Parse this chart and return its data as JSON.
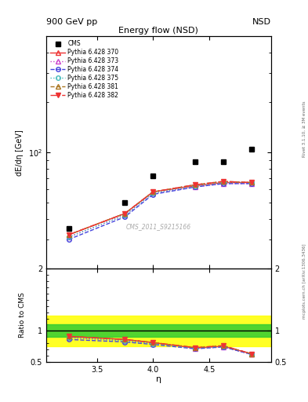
{
  "title_main": "Energy flow (NSD)",
  "header_left": "900 GeV pp",
  "header_right": "NSD",
  "right_label_top": "Rivet 3.1.10, ≥ 3M events",
  "right_label_bot": "mcplots.cern.ch [arXiv:1306.3436]",
  "watermark": "CMS_2011_S9215166",
  "xlabel": "η",
  "ylabel_main": "dE/dη [GeV]",
  "ylabel_ratio": "Ratio to CMS",
  "eta_points": [
    3.25,
    3.75,
    4.0,
    4.375,
    4.625,
    4.875
  ],
  "cms_data": [
    35.0,
    50.0,
    72.0,
    88.0,
    88.0,
    105.0
  ],
  "series": [
    {
      "label": "Pythia 6.428 370",
      "color": "#ee3333",
      "linestyle": "-",
      "marker": "^",
      "markerfacecolor": "none",
      "values": [
        32.0,
        43.0,
        58.0,
        63.0,
        66.0,
        66.0
      ],
      "ratio": [
        0.91,
        0.86,
        0.81,
        0.72,
        0.75,
        0.63
      ]
    },
    {
      "label": "Pythia 6.428 373",
      "color": "#cc44cc",
      "linestyle": ":",
      "marker": "^",
      "markerfacecolor": "none",
      "values": [
        31.0,
        42.0,
        57.0,
        62.0,
        65.0,
        65.0
      ],
      "ratio": [
        0.89,
        0.84,
        0.79,
        0.71,
        0.74,
        0.62
      ]
    },
    {
      "label": "Pythia 6.428 374",
      "color": "#4444dd",
      "linestyle": "--",
      "marker": "o",
      "markerfacecolor": "none",
      "values": [
        30.0,
        41.0,
        56.0,
        62.0,
        65.0,
        65.0
      ],
      "ratio": [
        0.86,
        0.82,
        0.78,
        0.71,
        0.74,
        0.62
      ]
    },
    {
      "label": "Pythia 6.428 375",
      "color": "#44bbbb",
      "linestyle": ":",
      "marker": "o",
      "markerfacecolor": "none",
      "values": [
        31.0,
        42.0,
        57.0,
        63.0,
        66.0,
        66.0
      ],
      "ratio": [
        0.89,
        0.84,
        0.79,
        0.72,
        0.75,
        0.63
      ]
    },
    {
      "label": "Pythia 6.428 381",
      "color": "#aa7722",
      "linestyle": "--",
      "marker": "^",
      "markerfacecolor": "none",
      "values": [
        32.0,
        43.0,
        58.0,
        64.0,
        67.0,
        66.0
      ],
      "ratio": [
        0.91,
        0.86,
        0.81,
        0.73,
        0.76,
        0.63
      ]
    },
    {
      "label": "Pythia 6.428 382",
      "color": "#ee3333",
      "linestyle": "-.",
      "marker": "v",
      "markerfacecolor": "#ee3333",
      "values": [
        32.0,
        43.0,
        58.0,
        64.0,
        67.0,
        66.0
      ],
      "ratio": [
        0.91,
        0.86,
        0.81,
        0.73,
        0.76,
        0.63
      ]
    }
  ],
  "ylim_main": [
    20,
    500
  ],
  "ylim_ratio": [
    0.5,
    2.0
  ],
  "xlim": [
    3.05,
    5.05
  ],
  "xticks": [
    3.5,
    4.0,
    4.5
  ],
  "yticks_ratio": [
    0.5,
    1.0,
    2.0
  ],
  "green_band": [
    0.9,
    1.1
  ],
  "yellow_band": [
    0.75,
    1.25
  ]
}
